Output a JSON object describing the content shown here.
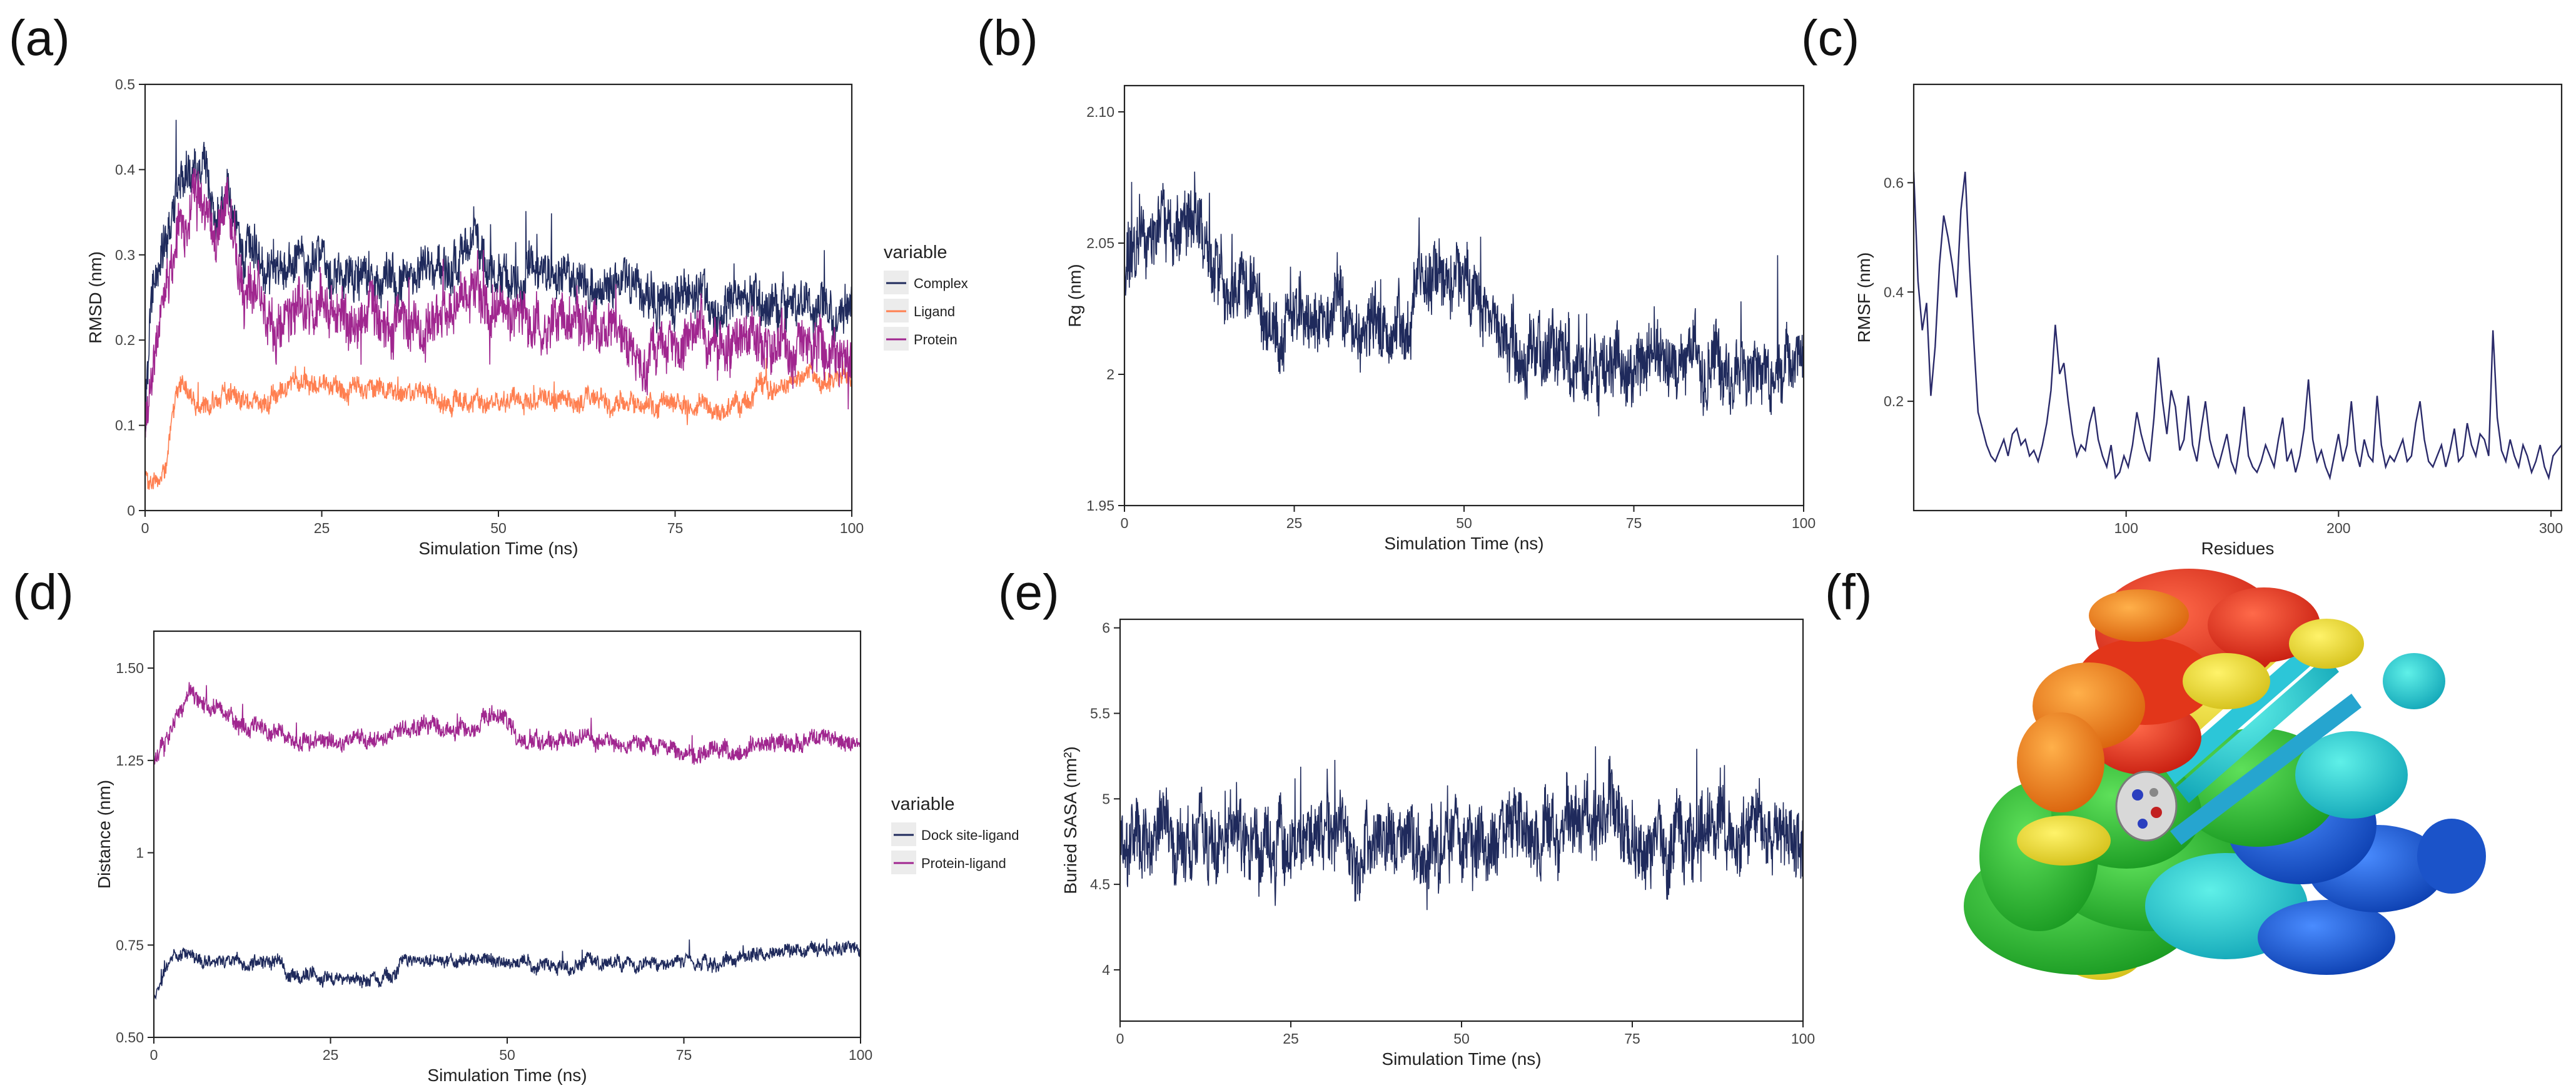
{
  "figure": {
    "panels": [
      "(a)",
      "(b)",
      "(c)",
      "(d)",
      "(e)",
      "(f)"
    ],
    "structure_label": "protein-ligand complex ensemble (cartoon)"
  },
  "colors": {
    "navy": "#1f2a5c",
    "orange": "#ff7f50",
    "purple": "#a0268f",
    "frame": "#222222"
  },
  "chart_data": [
    {
      "id": "a",
      "type": "line",
      "xlabel": "Simulation Time (ns)",
      "ylabel": "RMSD (nm)",
      "xlim": [
        0,
        100
      ],
      "ylim": [
        0,
        0.5
      ],
      "xticks": [
        0,
        25,
        50,
        75,
        100
      ],
      "yticks": [
        0,
        0.1,
        0.2,
        0.3,
        0.4,
        0.5
      ],
      "ytick_labels": [
        "0",
        "0.1",
        "0.2",
        "0.3",
        "0.4",
        "0.5"
      ],
      "legend_title": "variable",
      "legend_position": "right",
      "series": [
        {
          "name": "Complex",
          "color": "#1f2a5c",
          "noise": 0.045,
          "keypoints": [
            [
              0,
              0.1
            ],
            [
              1,
              0.25
            ],
            [
              3,
              0.32
            ],
            [
              5,
              0.38
            ],
            [
              8,
              0.4
            ],
            [
              10,
              0.34
            ],
            [
              12,
              0.37
            ],
            [
              14,
              0.3
            ],
            [
              18,
              0.29
            ],
            [
              25,
              0.29
            ],
            [
              35,
              0.27
            ],
            [
              45,
              0.29
            ],
            [
              47,
              0.31
            ],
            [
              50,
              0.27
            ],
            [
              60,
              0.27
            ],
            [
              65,
              0.26
            ],
            [
              75,
              0.24
            ],
            [
              85,
              0.25
            ],
            [
              90,
              0.24
            ],
            [
              100,
              0.23
            ]
          ]
        },
        {
          "name": "Ligand",
          "color": "#ff7f50",
          "noise": 0.02,
          "keypoints": [
            [
              0,
              0.04
            ],
            [
              2,
              0.03
            ],
            [
              3,
              0.05
            ],
            [
              4,
              0.12
            ],
            [
              5,
              0.15
            ],
            [
              7,
              0.13
            ],
            [
              15,
              0.13
            ],
            [
              25,
              0.15
            ],
            [
              30,
              0.14
            ],
            [
              50,
              0.13
            ],
            [
              75,
              0.125
            ],
            [
              86,
              0.125
            ],
            [
              87,
              0.15
            ],
            [
              100,
              0.155
            ]
          ]
        },
        {
          "name": "Protein",
          "color": "#a0268f",
          "noise": 0.05,
          "keypoints": [
            [
              0,
              0.1
            ],
            [
              2,
              0.22
            ],
            [
              5,
              0.34
            ],
            [
              8,
              0.36
            ],
            [
              10,
              0.32
            ],
            [
              12,
              0.36
            ],
            [
              14,
              0.24
            ],
            [
              18,
              0.21
            ],
            [
              25,
              0.23
            ],
            [
              35,
              0.21
            ],
            [
              45,
              0.24
            ],
            [
              47,
              0.28
            ],
            [
              50,
              0.22
            ],
            [
              60,
              0.22
            ],
            [
              65,
              0.2
            ],
            [
              75,
              0.18
            ],
            [
              85,
              0.2
            ],
            [
              90,
              0.19
            ],
            [
              100,
              0.18
            ]
          ]
        }
      ]
    },
    {
      "id": "b",
      "type": "line",
      "xlabel": "Simulation Time (ns)",
      "ylabel": "Rg (nm)",
      "xlim": [
        0,
        100
      ],
      "ylim": [
        1.95,
        2.11
      ],
      "xticks": [
        0,
        25,
        50,
        75,
        100
      ],
      "yticks": [
        1.95,
        2,
        2.05,
        2.1
      ],
      "ytick_labels": [
        "1.95",
        "2",
        "2.05",
        "2.10"
      ],
      "series": [
        {
          "name": "Rg",
          "color": "#1f2a5c",
          "noise": 0.022,
          "keypoints": [
            [
              0,
              2.04
            ],
            [
              3,
              2.055
            ],
            [
              6,
              2.06
            ],
            [
              10,
              2.055
            ],
            [
              13,
              2.045
            ],
            [
              20,
              2.025
            ],
            [
              30,
              2.02
            ],
            [
              40,
              2.02
            ],
            [
              47,
              2.04
            ],
            [
              50,
              2.035
            ],
            [
              55,
              2.015
            ],
            [
              65,
              2.005
            ],
            [
              70,
              2.0
            ],
            [
              80,
              2.005
            ],
            [
              90,
              2.0
            ],
            [
              100,
              2.005
            ]
          ]
        }
      ]
    },
    {
      "id": "c",
      "type": "line",
      "xlabel": "Residues",
      "ylabel": "RMSF (nm)",
      "xlim": [
        0,
        305
      ],
      "ylim": [
        0,
        0.78
      ],
      "xticks": [
        100,
        200,
        300
      ],
      "yticks": [
        0.2,
        0.4,
        0.6
      ],
      "ytick_labels": [
        "0.2",
        "0.4",
        "0.6"
      ],
      "series": [
        {
          "name": "RMSF",
          "color": "#2a2a6a",
          "noise": 0,
          "values": [
            0.62,
            0.42,
            0.33,
            0.38,
            0.21,
            0.3,
            0.45,
            0.54,
            0.5,
            0.45,
            0.39,
            0.55,
            0.62,
            0.45,
            0.31,
            0.18,
            0.15,
            0.12,
            0.1,
            0.09,
            0.11,
            0.13,
            0.1,
            0.14,
            0.15,
            0.12,
            0.13,
            0.1,
            0.11,
            0.09,
            0.12,
            0.16,
            0.22,
            0.34,
            0.25,
            0.27,
            0.2,
            0.14,
            0.1,
            0.12,
            0.11,
            0.16,
            0.19,
            0.13,
            0.1,
            0.08,
            0.12,
            0.06,
            0.07,
            0.1,
            0.08,
            0.12,
            0.18,
            0.14,
            0.11,
            0.09,
            0.17,
            0.28,
            0.2,
            0.14,
            0.22,
            0.19,
            0.11,
            0.13,
            0.21,
            0.12,
            0.09,
            0.15,
            0.2,
            0.13,
            0.1,
            0.08,
            0.11,
            0.14,
            0.09,
            0.07,
            0.12,
            0.19,
            0.1,
            0.08,
            0.07,
            0.09,
            0.12,
            0.1,
            0.08,
            0.13,
            0.17,
            0.09,
            0.11,
            0.07,
            0.1,
            0.15,
            0.24,
            0.13,
            0.09,
            0.11,
            0.08,
            0.06,
            0.1,
            0.14,
            0.09,
            0.12,
            0.2,
            0.11,
            0.08,
            0.13,
            0.1,
            0.09,
            0.21,
            0.12,
            0.08,
            0.1,
            0.09,
            0.11,
            0.13,
            0.09,
            0.1,
            0.16,
            0.2,
            0.13,
            0.09,
            0.08,
            0.1,
            0.12,
            0.08,
            0.11,
            0.15,
            0.09,
            0.1,
            0.16,
            0.12,
            0.1,
            0.14,
            0.13,
            0.1,
            0.33,
            0.17,
            0.11,
            0.09,
            0.13,
            0.1,
            0.08,
            0.12,
            0.1,
            0.07,
            0.09,
            0.12,
            0.08,
            0.06,
            0.1,
            0.11,
            0.12
          ]
        }
      ]
    },
    {
      "id": "d",
      "type": "line",
      "xlabel": "Simulation Time (ns)",
      "ylabel": "Distance (nm)",
      "xlim": [
        0,
        100
      ],
      "ylim": [
        0.5,
        1.6
      ],
      "xticks": [
        0,
        25,
        50,
        75,
        100
      ],
      "yticks": [
        0.5,
        0.75,
        1,
        1.25,
        1.5
      ],
      "ytick_labels": [
        "0.50",
        "0.75",
        "1",
        "1.25",
        "1.50"
      ],
      "legend_title": "variable",
      "legend_position": "right",
      "series": [
        {
          "name": "Dock site-ligand",
          "color": "#1f2a5c",
          "noise": 0.03,
          "keypoints": [
            [
              0,
              0.62
            ],
            [
              2,
              0.7
            ],
            [
              5,
              0.72
            ],
            [
              15,
              0.71
            ],
            [
              18,
              0.7
            ],
            [
              19,
              0.66
            ],
            [
              25,
              0.66
            ],
            [
              34,
              0.66
            ],
            [
              35,
              0.71
            ],
            [
              50,
              0.7
            ],
            [
              60,
              0.7
            ],
            [
              70,
              0.7
            ],
            [
              80,
              0.7
            ],
            [
              85,
              0.73
            ],
            [
              100,
              0.74
            ]
          ]
        },
        {
          "name": "Protein-ligand",
          "color": "#a0268f",
          "noise": 0.04,
          "keypoints": [
            [
              0,
              1.25
            ],
            [
              2,
              1.32
            ],
            [
              5,
              1.44
            ],
            [
              8,
              1.4
            ],
            [
              12,
              1.35
            ],
            [
              18,
              1.33
            ],
            [
              20,
              1.29
            ],
            [
              30,
              1.3
            ],
            [
              38,
              1.34
            ],
            [
              45,
              1.33
            ],
            [
              48,
              1.38
            ],
            [
              52,
              1.31
            ],
            [
              65,
              1.3
            ],
            [
              75,
              1.27
            ],
            [
              85,
              1.28
            ],
            [
              90,
              1.31
            ],
            [
              100,
              1.3
            ]
          ]
        }
      ]
    },
    {
      "id": "e",
      "type": "line",
      "xlabel": "Simulation Time (ns)",
      "ylabel": "Buried SASA (nm²)",
      "xlim": [
        0,
        100
      ],
      "ylim": [
        3.7,
        6.05
      ],
      "xticks": [
        0,
        25,
        50,
        75,
        100
      ],
      "yticks": [
        4,
        4.5,
        5,
        5.5,
        6
      ],
      "ytick_labels": [
        "4",
        "4.5",
        "5",
        "5.5",
        "6"
      ],
      "series": [
        {
          "name": "Buried SASA",
          "color": "#1f2a5c",
          "noise": 0.36,
          "keypoints": [
            [
              0,
              4.8
            ],
            [
              10,
              4.75
            ],
            [
              25,
              4.75
            ],
            [
              50,
              4.75
            ],
            [
              60,
              4.8
            ],
            [
              75,
              4.85
            ],
            [
              90,
              4.8
            ],
            [
              100,
              4.75
            ]
          ]
        }
      ]
    }
  ]
}
